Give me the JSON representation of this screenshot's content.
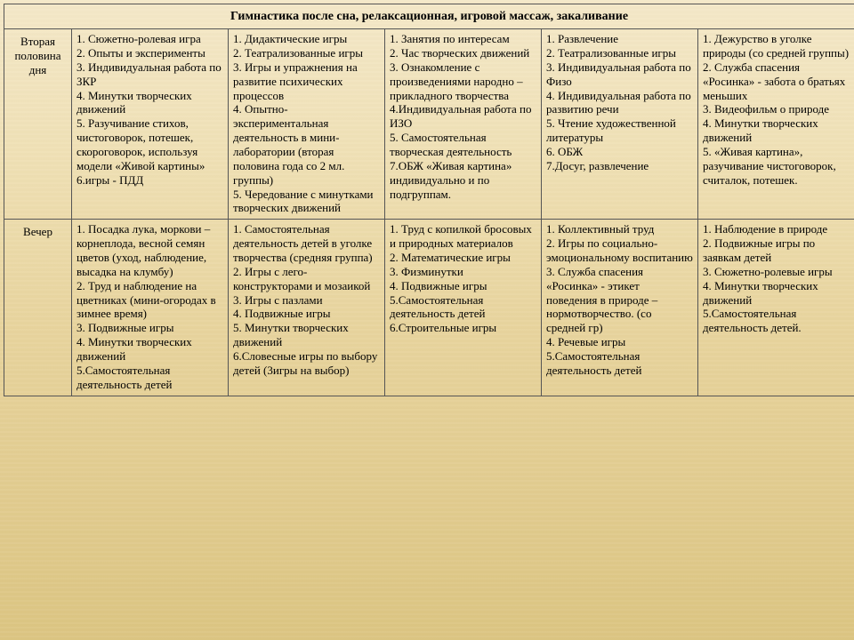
{
  "colors": {
    "border": "#555",
    "text": "#000",
    "bg_top": "#f4e8c8",
    "bg_bottom": "#dcc582"
  },
  "header": "Гимнастика после сна, релаксационная, игровой массаж, закаливание",
  "rows": [
    {
      "period": "Вторая половина дня",
      "cells": [
        "1. Сюжетно-ролевая игра\n2. Опыты и эксперименты\n3. Индивидуальная работа по ЗКР\n4. Минутки творческих движений\n5. Разучивание стихов, чистоговорок, потешек, скороговорок, используя модели «Живой картины»\n6.игры - ПДД",
        "1. Дидактические игры\n2. Театрализованные игры\n3. Игры и упражнения на развитие психических процессов\n4. Опытно-экспериментальная деятельность в мини-лаборатории (вторая половина года со 2 мл. группы)\n5. Чередование с минутками творческих движений",
        "1. Занятия по интересам\n2. Час творческих движений\n3. Ознакомление с произведениями народно – прикладного творчества\n4.Индивидуальная работа по ИЗО\n5. Самостоятельная творческая деятельность\n7.ОБЖ «Живая картина» индивидуально и по подгруппам.",
        "1. Развлечение\n2. Театрализованные игры\n3. Индивидуальная работа по Физо\n4. Индивидуальная работа по развитию речи\n5. Чтение художественной литературы\n6. ОБЖ\n7.Досуг, развлечение",
        "1. Дежурство в уголке природы (со средней группы)\n2. Служба спасения «Росинка» - забота о братьях меньших\n3. Видеофильм о природе\n4. Минутки творческих движений\n5. «Живая картина», разучивание чистоговорок, считалок, потешек."
      ]
    },
    {
      "period": "Вечер",
      "cells": [
        "1. Посадка лука, моркови – корнеплода, весной семян цветов (уход, наблюдение, высадка на клумбу)\n2. Труд и наблюдение на цветниках (мини-огородах в зимнее время)\n3. Подвижные игры\n4. Минутки творческих движений\n5.Самостоятельная деятельность детей",
        "1. Самостоятельная деятельность детей в уголке творчества (средняя группа)\n2. Игры с лего-конструкторами и мозаикой\n3. Игры с пазлами\n4. Подвижные игры\n5. Минутки творческих движений\n6.Словесные игры по выбору детей (3игры на выбор)",
        "1. Труд с копилкой бросовых и природных материалов\n2. Математические игры\n3. Физминутки\n4. Подвижные игры\n5.Самостоятельная деятельность детей\n6.Строительные игры",
        "1. Коллективный труд\n2. Игры по социально-эмоциональному воспитанию\n3. Служба спасения «Росинка» - этикет поведения в природе – нормотворчество. (со средней гр)\n4. Речевые игры\n5.Самостоятельная деятельность детей",
        "1. Наблюдение в природе\n2. Подвижные игры по заявкам детей\n3. Сюжетно-ролевые игры\n4. Минутки творческих движений\n5.Самостоятельная деятельность детей."
      ]
    }
  ]
}
